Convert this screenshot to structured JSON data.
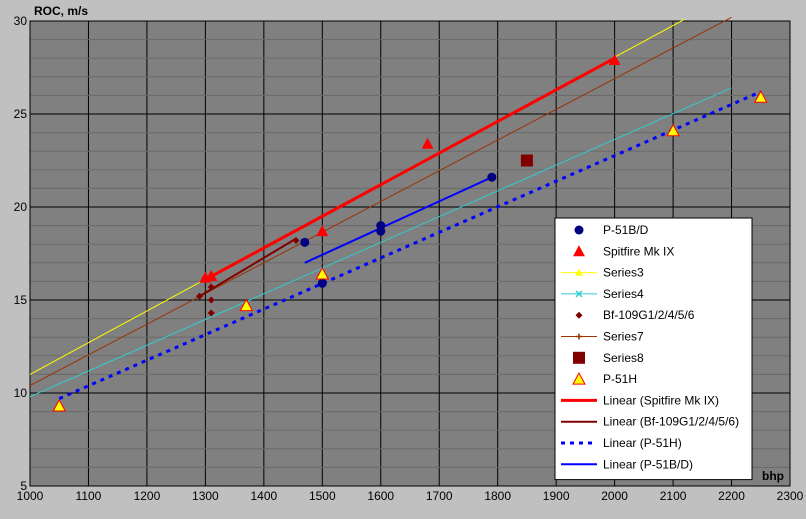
{
  "chart_data": {
    "type": "scatter",
    "title": "",
    "xlabel": "bhp",
    "ylabel": "ROC, m/s",
    "xlim": [
      1000,
      2300
    ],
    "ylim": [
      5,
      30
    ],
    "xticks": [
      1000,
      1100,
      1200,
      1300,
      1400,
      1500,
      1600,
      1700,
      1800,
      1900,
      2000,
      2100,
      2200,
      2300
    ],
    "yticks": [
      5,
      10,
      15,
      20,
      25,
      30
    ],
    "grid": true,
    "legend_position": "right",
    "plot_background": "#808080",
    "series": [
      {
        "name": "P-51B/D",
        "kind": "marker",
        "marker": "circle",
        "color": "#000080",
        "points": [
          [
            1470,
            18.1
          ],
          [
            1500,
            15.9
          ],
          [
            1600,
            18.7
          ],
          [
            1600,
            19.0
          ],
          [
            1790,
            21.6
          ]
        ]
      },
      {
        "name": "Spitfire Mk IX",
        "kind": "marker",
        "marker": "triangle",
        "color": "#ff0000",
        "points": [
          [
            1300,
            16.2
          ],
          [
            1310,
            16.3
          ],
          [
            1500,
            18.7
          ],
          [
            1680,
            23.4
          ],
          [
            2000,
            27.9
          ]
        ]
      },
      {
        "name": "Series3",
        "kind": "line",
        "marker": "triangle-small",
        "color": "#ffff00",
        "points": [
          [
            1000,
            11.0
          ],
          [
            2120,
            30.1
          ]
        ]
      },
      {
        "name": "Series4",
        "kind": "line",
        "marker": "x",
        "color": "#33cccc",
        "points": [
          [
            1000,
            9.8
          ],
          [
            2200,
            26.4
          ]
        ]
      },
      {
        "name": "Bf-109G1/2/4/5/6",
        "kind": "marker",
        "marker": "diamond",
        "color": "#800000",
        "points": [
          [
            1290,
            15.2
          ],
          [
            1310,
            15.7
          ],
          [
            1310,
            15.0
          ],
          [
            1310,
            14.3
          ],
          [
            1455,
            18.2
          ]
        ]
      },
      {
        "name": "Series7",
        "kind": "line",
        "marker": "plus",
        "color": "#993300",
        "points": [
          [
            1000,
            10.4
          ],
          [
            2200,
            30.2
          ]
        ]
      },
      {
        "name": "Series8",
        "kind": "marker",
        "marker": "square",
        "color": "#800000",
        "points": [
          [
            1850,
            22.5
          ]
        ]
      },
      {
        "name": "P-51H",
        "kind": "marker",
        "marker": "triangle-outline",
        "color": "#ffff00",
        "stroke": "#ff0000",
        "points": [
          [
            1050,
            9.3
          ],
          [
            1370,
            14.7
          ],
          [
            1500,
            16.4
          ],
          [
            2100,
            24.1
          ],
          [
            2250,
            25.9
          ]
        ]
      },
      {
        "name": "Linear (Spitfire Mk IX)",
        "kind": "line",
        "dash": "solid",
        "color": "#ff0000",
        "width": 3,
        "points": [
          [
            1300,
            16.1
          ],
          [
            2000,
            28.0
          ]
        ]
      },
      {
        "name": "Linear (Bf-109G1/2/4/5/6)",
        "kind": "line",
        "dash": "solid",
        "color": "#800000",
        "width": 2,
        "points": [
          [
            1290,
            15.2
          ],
          [
            1455,
            18.3
          ]
        ]
      },
      {
        "name": "Linear (P-51H)",
        "kind": "line",
        "dash": "dotted",
        "color": "#0000ff",
        "width": 3,
        "points": [
          [
            1050,
            9.7
          ],
          [
            2250,
            26.2
          ]
        ]
      },
      {
        "name": "Linear (P-51B/D)",
        "kind": "line",
        "dash": "solid",
        "color": "#0000ff",
        "width": 2,
        "points": [
          [
            1470,
            17.0
          ],
          [
            1790,
            21.6
          ]
        ]
      }
    ]
  }
}
